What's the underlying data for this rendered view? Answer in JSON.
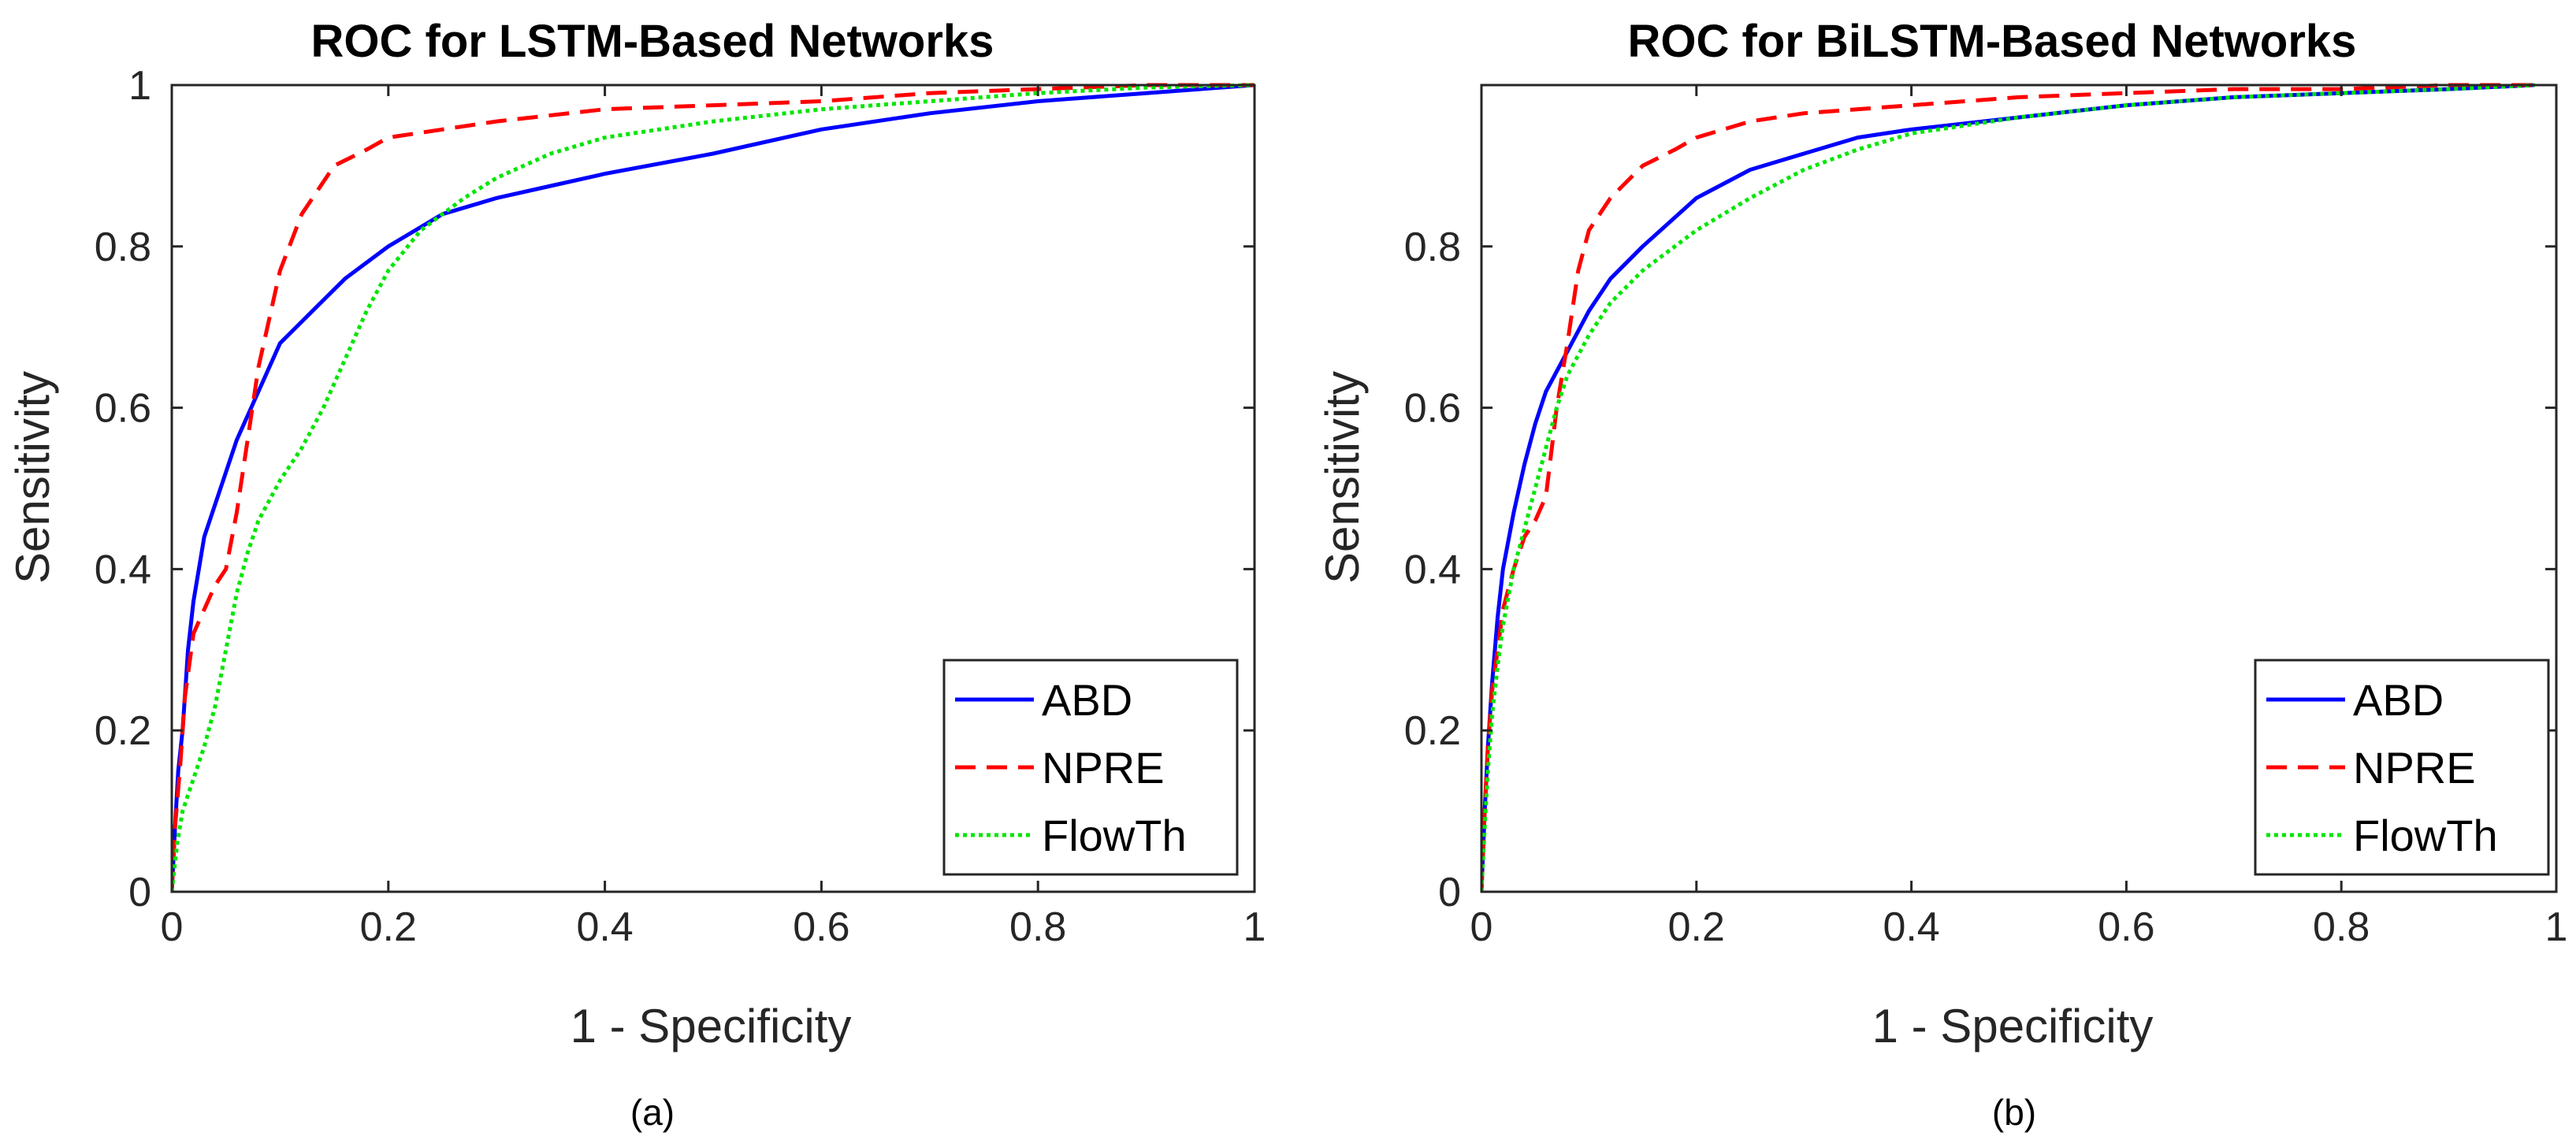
{
  "chart_data": [
    {
      "type": "line",
      "panel": "a",
      "title": "ROC for LSTM-Based Networks",
      "xlabel": "1 - Specificity",
      "ylabel": "Sensitivity",
      "caption": "(a)",
      "xlim": [
        0,
        1
      ],
      "ylim": [
        0,
        1
      ],
      "xticks": [
        0,
        0.2,
        0.4,
        0.6,
        0.8,
        1
      ],
      "xtick_labels": [
        "0",
        "0.2",
        "0.4",
        "0.6",
        "0.8",
        "1"
      ],
      "yticks": [
        0,
        0.2,
        0.4,
        0.6,
        0.8,
        1
      ],
      "ytick_labels": [
        "0",
        "0.2",
        "0.4",
        "0.6",
        "0.8",
        "1"
      ],
      "grid": false,
      "legend_position": "bottom-right",
      "series": [
        {
          "name": "ABD",
          "color": "#0000ff",
          "style": "solid",
          "x": [
            0,
            0.003,
            0.006,
            0.01,
            0.015,
            0.02,
            0.03,
            0.045,
            0.06,
            0.08,
            0.1,
            0.13,
            0.16,
            0.2,
            0.25,
            0.3,
            0.35,
            0.4,
            0.5,
            0.6,
            0.7,
            0.8,
            0.9,
            1.0
          ],
          "y": [
            0,
            0.08,
            0.15,
            0.2,
            0.3,
            0.36,
            0.44,
            0.5,
            0.56,
            0.62,
            0.68,
            0.72,
            0.76,
            0.8,
            0.84,
            0.86,
            0.875,
            0.89,
            0.915,
            0.945,
            0.965,
            0.98,
            0.99,
            1.0
          ]
        },
        {
          "name": "NPRE",
          "color": "#ff0000",
          "style": "dashed",
          "x": [
            0,
            0.003,
            0.008,
            0.012,
            0.02,
            0.03,
            0.04,
            0.05,
            0.06,
            0.07,
            0.08,
            0.1,
            0.12,
            0.15,
            0.18,
            0.2,
            0.25,
            0.3,
            0.4,
            0.5,
            0.6,
            0.7,
            0.8,
            0.9,
            1.0
          ],
          "y": [
            0,
            0.08,
            0.16,
            0.24,
            0.32,
            0.35,
            0.38,
            0.4,
            0.47,
            0.56,
            0.65,
            0.77,
            0.84,
            0.9,
            0.92,
            0.935,
            0.945,
            0.955,
            0.97,
            0.975,
            0.98,
            0.99,
            0.995,
            1.0,
            1.0
          ]
        },
        {
          "name": "FlowTh",
          "color": "#00e600",
          "style": "dotted",
          "x": [
            0,
            0.005,
            0.01,
            0.02,
            0.03,
            0.04,
            0.05,
            0.06,
            0.07,
            0.08,
            0.1,
            0.12,
            0.14,
            0.16,
            0.18,
            0.2,
            0.23,
            0.27,
            0.3,
            0.35,
            0.4,
            0.5,
            0.6,
            0.7,
            0.8,
            0.9,
            1.0
          ],
          "y": [
            0,
            0.06,
            0.1,
            0.14,
            0.18,
            0.23,
            0.3,
            0.37,
            0.42,
            0.46,
            0.51,
            0.55,
            0.6,
            0.66,
            0.72,
            0.77,
            0.82,
            0.86,
            0.885,
            0.915,
            0.935,
            0.955,
            0.97,
            0.98,
            0.99,
            0.997,
            1.0
          ]
        }
      ]
    },
    {
      "type": "line",
      "panel": "b",
      "title": "ROC for BiLSTM-Based Networks",
      "xlabel": "1 - Specificity",
      "ylabel": "Sensitivity",
      "caption": "(b)",
      "xlim": [
        0,
        1
      ],
      "ylim": [
        0,
        1
      ],
      "xticks": [
        0,
        0.2,
        0.4,
        0.6,
        0.8,
        1
      ],
      "xtick_labels": [
        "0",
        "0.2",
        "0.4",
        "0.6",
        "0.8",
        "1"
      ],
      "yticks": [
        0,
        0.2,
        0.4,
        0.6,
        0.8
      ],
      "ytick_labels": [
        "0",
        "0.2",
        "0.4",
        "0.6",
        "0.8"
      ],
      "grid": false,
      "legend_position": "bottom-right",
      "series": [
        {
          "name": "ABD",
          "color": "#0000ff",
          "style": "solid",
          "x": [
            0,
            0.003,
            0.006,
            0.01,
            0.015,
            0.02,
            0.03,
            0.04,
            0.05,
            0.06,
            0.08,
            0.1,
            0.12,
            0.15,
            0.2,
            0.25,
            0.3,
            0.35,
            0.4,
            0.5,
            0.6,
            0.7,
            0.8,
            0.9,
            0.98
          ],
          "y": [
            0,
            0.1,
            0.18,
            0.26,
            0.34,
            0.4,
            0.47,
            0.53,
            0.58,
            0.62,
            0.67,
            0.72,
            0.76,
            0.8,
            0.86,
            0.895,
            0.915,
            0.935,
            0.945,
            0.96,
            0.975,
            0.985,
            0.99,
            0.995,
            1.0
          ]
        },
        {
          "name": "NPRE",
          "color": "#ff0000",
          "style": "dashed",
          "x": [
            0,
            0.003,
            0.006,
            0.01,
            0.015,
            0.02,
            0.03,
            0.04,
            0.05,
            0.06,
            0.07,
            0.08,
            0.09,
            0.1,
            0.12,
            0.15,
            0.18,
            0.2,
            0.25,
            0.3,
            0.4,
            0.5,
            0.6,
            0.7,
            0.8,
            0.9,
            0.98
          ],
          "y": [
            0,
            0.1,
            0.18,
            0.25,
            0.3,
            0.35,
            0.4,
            0.44,
            0.46,
            0.49,
            0.6,
            0.68,
            0.77,
            0.82,
            0.86,
            0.9,
            0.92,
            0.935,
            0.955,
            0.965,
            0.975,
            0.985,
            0.99,
            0.995,
            0.995,
            1.0,
            1.0
          ]
        },
        {
          "name": "FlowTh",
          "color": "#00e600",
          "style": "dotted",
          "x": [
            0,
            0.003,
            0.006,
            0.01,
            0.015,
            0.02,
            0.03,
            0.04,
            0.05,
            0.06,
            0.07,
            0.08,
            0.1,
            0.12,
            0.15,
            0.2,
            0.25,
            0.3,
            0.35,
            0.4,
            0.5,
            0.6,
            0.7,
            0.8,
            0.9,
            0.98
          ],
          "y": [
            0,
            0.08,
            0.15,
            0.22,
            0.28,
            0.33,
            0.4,
            0.45,
            0.5,
            0.55,
            0.6,
            0.64,
            0.69,
            0.73,
            0.77,
            0.82,
            0.86,
            0.895,
            0.92,
            0.94,
            0.96,
            0.975,
            0.985,
            0.99,
            0.995,
            1.0
          ]
        }
      ]
    }
  ]
}
